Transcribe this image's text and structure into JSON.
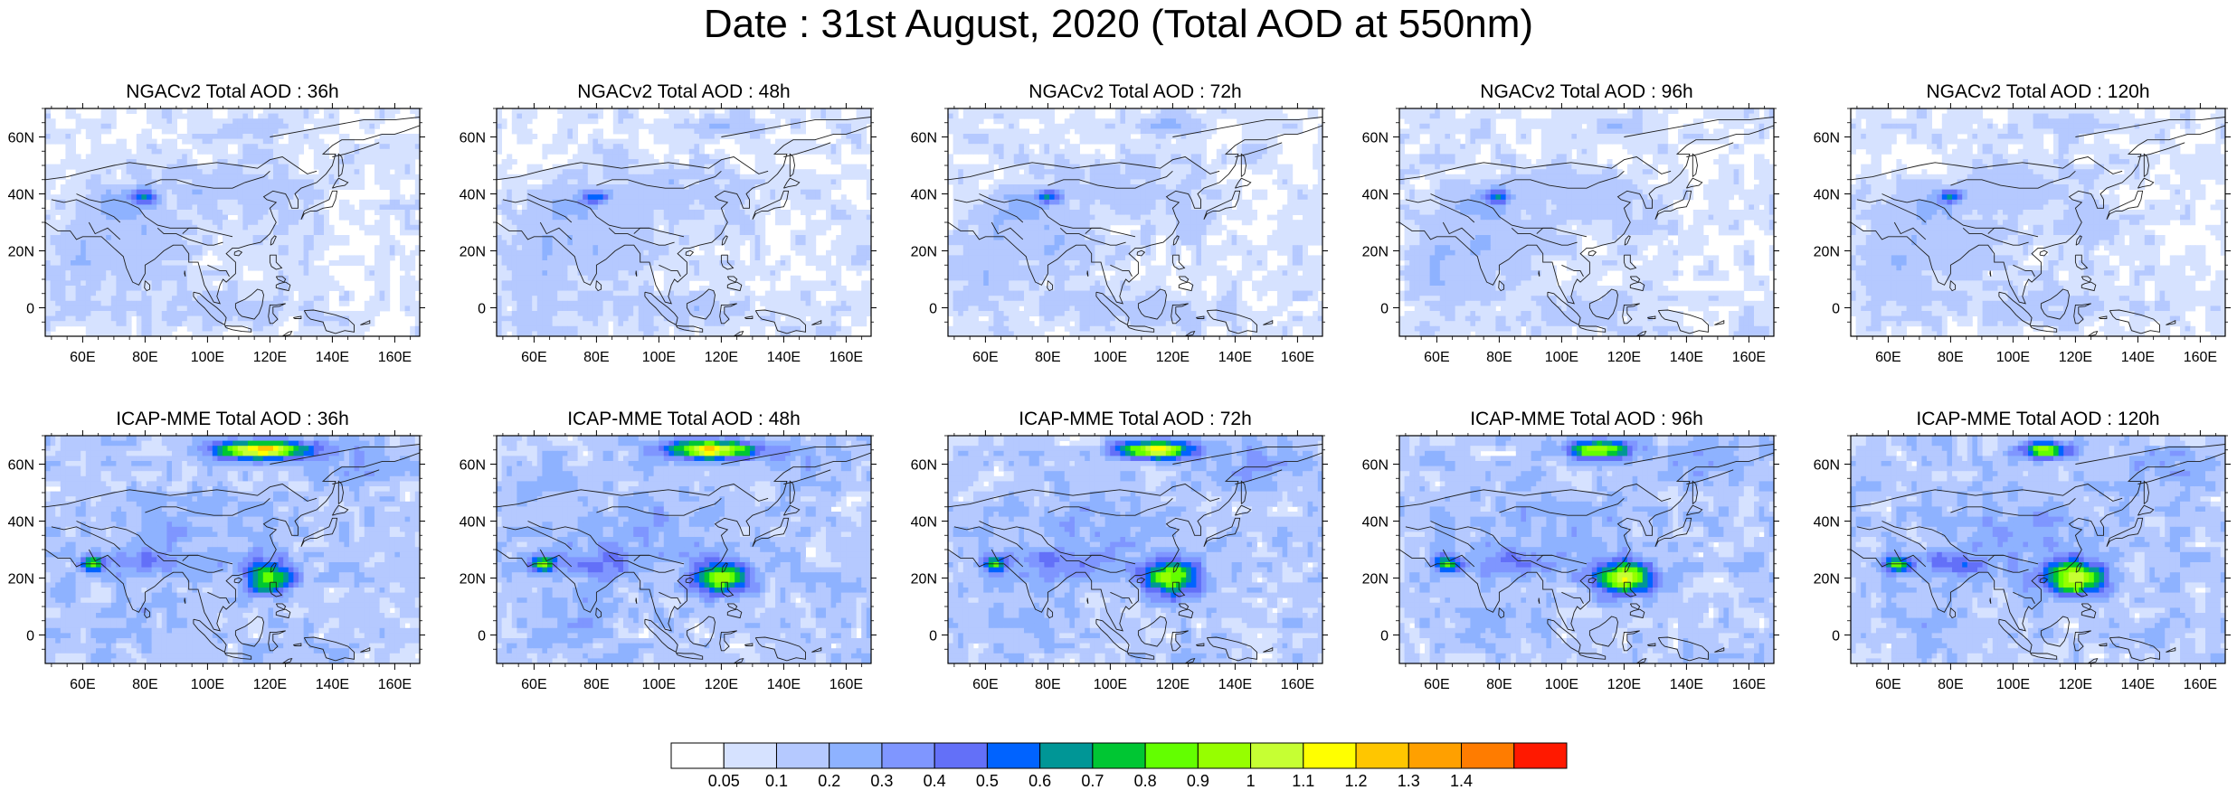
{
  "title": "Date : 31st August, 2020 (Total AOD at 550nm)",
  "panels": [
    {
      "title": "NGACv2 Total AOD : 36h",
      "model": "ngac",
      "hour": 36
    },
    {
      "title": "NGACv2 Total AOD : 48h",
      "model": "ngac",
      "hour": 48
    },
    {
      "title": "NGACv2 Total AOD : 72h",
      "model": "ngac",
      "hour": 72
    },
    {
      "title": "NGACv2 Total AOD : 96h",
      "model": "ngac",
      "hour": 96
    },
    {
      "title": "NGACv2 Total AOD : 120h",
      "model": "ngac",
      "hour": 120
    },
    {
      "title": "ICAP-MME Total AOD : 36h",
      "model": "icap",
      "hour": 36
    },
    {
      "title": "ICAP-MME Total AOD : 48h",
      "model": "icap",
      "hour": 48
    },
    {
      "title": "ICAP-MME Total AOD : 72h",
      "model": "icap",
      "hour": 72
    },
    {
      "title": "ICAP-MME Total AOD : 96h",
      "model": "icap",
      "hour": 96
    },
    {
      "title": "ICAP-MME Total AOD : 120h",
      "model": "icap",
      "hour": 120
    }
  ],
  "map": {
    "lon_range": [
      48,
      168
    ],
    "lat_range": [
      -10,
      70
    ],
    "lon_ticks": [
      "60E",
      "80E",
      "100E",
      "120E",
      "140E",
      "160E"
    ],
    "lon_tick_values": [
      60,
      80,
      100,
      120,
      140,
      160
    ],
    "lat_ticks": [
      "0",
      "20N",
      "40N",
      "60N"
    ],
    "lat_tick_values": [
      0,
      20,
      40,
      60
    ]
  },
  "colorbar": {
    "labels": [
      "0.05",
      "0.1",
      "0.2",
      "0.3",
      "0.4",
      "0.5",
      "0.6",
      "0.7",
      "0.8",
      "0.9",
      "1",
      "1.1",
      "1.2",
      "1.3",
      "1.4"
    ],
    "colors": [
      "#ffffff",
      "#d6e2ff",
      "#b5c9ff",
      "#8eb2ff",
      "#7f96ff",
      "#6370f8",
      "#0063ff",
      "#009696",
      "#00c633",
      "#63ff00",
      "#96ff00",
      "#c6ff33",
      "#ffff00",
      "#ffc600",
      "#ffa000",
      "#ff7c00",
      "#ff1900"
    ]
  }
}
